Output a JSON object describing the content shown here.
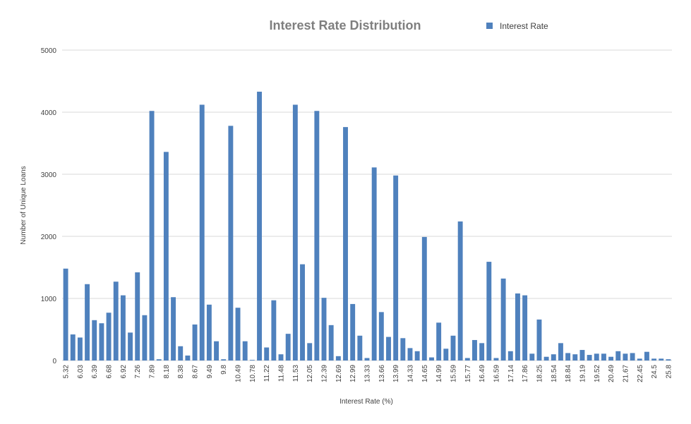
{
  "chart_data": {
    "type": "bar",
    "title": "Interest Rate Distribution",
    "xlabel": "Interest Rate (%)",
    "ylabel": "Number of Unique Loans",
    "ylim": [
      0,
      5000
    ],
    "yticks": [
      "0",
      "1000",
      "2000",
      "3000",
      "4000",
      "5000"
    ],
    "grid": true,
    "legend_position": "top-right",
    "series": [
      {
        "name": "Interest Rate",
        "color": "#4f81bd"
      }
    ],
    "tick_labels": [
      "5.32",
      "6.03",
      "6.39",
      "6.68",
      "6.92",
      "7.26",
      "7.89",
      "8.18",
      "8.38",
      "8.67",
      "9.49",
      "9.8",
      "10.49",
      "10.78",
      "11.22",
      "11.48",
      "11.53",
      "12.05",
      "12.39",
      "12.69",
      "12.99",
      "13.33",
      "13.66",
      "13.99",
      "14.33",
      "14.65",
      "14.99",
      "15.59",
      "15.77",
      "16.49",
      "16.59",
      "17.14",
      "17.86",
      "18.25",
      "18.54",
      "18.84",
      "19.19",
      "19.52",
      "20.49",
      "21.67",
      "22.45",
      "24.5",
      "25.8"
    ],
    "values": [
      1480,
      420,
      370,
      1230,
      650,
      600,
      770,
      1270,
      1050,
      450,
      1420,
      730,
      4020,
      20,
      3360,
      1020,
      230,
      80,
      580,
      4120,
      900,
      310,
      20,
      3780,
      850,
      310,
      10,
      4330,
      210,
      970,
      100,
      430,
      4120,
      1550,
      280,
      4020,
      1010,
      570,
      70,
      3760,
      910,
      400,
      40,
      3110,
      780,
      380,
      2980,
      360,
      200,
      150,
      1990,
      50,
      610,
      190,
      400,
      2240,
      40,
      330,
      280,
      1590,
      40,
      1320,
      150,
      1080,
      1050,
      110,
      660,
      60,
      100,
      280,
      120,
      100,
      170,
      90,
      110,
      110,
      60,
      150,
      110,
      120,
      30,
      140,
      30,
      30,
      20
    ]
  }
}
